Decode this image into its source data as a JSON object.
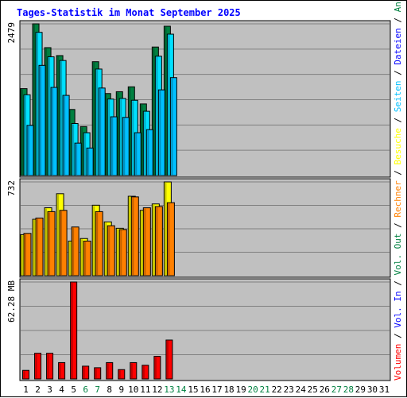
{
  "chart_data": {
    "type": "bar",
    "title": "Tages-Statistik im Monat September 2025",
    "categories": [
      "1",
      "2",
      "3",
      "4",
      "5",
      "6",
      "7",
      "8",
      "9",
      "10",
      "11",
      "12",
      "13",
      "14",
      "15",
      "16",
      "17",
      "18",
      "19",
      "20",
      "21",
      "22",
      "23",
      "24",
      "25",
      "26",
      "27",
      "28",
      "29",
      "30",
      "31"
    ],
    "weekend_days": [
      "6",
      "7",
      "13",
      "14",
      "20",
      "21",
      "27",
      "28"
    ],
    "grid": true,
    "panels": [
      {
        "name": "requests",
        "ymax_label": "2479",
        "ymax": 2479,
        "legend": [
          "Anfragen",
          "Dateien",
          "Seiten"
        ],
        "series": [
          {
            "name": "Anfragen",
            "color": "#008040",
            "values": [
              1420,
              2479,
              2090,
              1960,
              1080,
              800,
              1860,
              1340,
              1370,
              1450,
              1170,
              2100,
              2440,
              0,
              0,
              0,
              0,
              0,
              0,
              0,
              0,
              0,
              0,
              0,
              0,
              0,
              0,
              0,
              0,
              0,
              0
            ]
          },
          {
            "name": "Dateien",
            "color": "#00e0ff",
            "values": [
              1320,
              2340,
              1940,
              1880,
              850,
              700,
              1740,
              1250,
              1260,
              1230,
              1050,
              1950,
              2310,
              0,
              0,
              0,
              0,
              0,
              0,
              0,
              0,
              0,
              0,
              0,
              0,
              0,
              0,
              0,
              0,
              0,
              0
            ]
          },
          {
            "name": "Seiten",
            "color": "#00c0ff",
            "values": [
              820,
              1800,
              1440,
              1310,
              530,
              450,
              1430,
              960,
              950,
              700,
              750,
              1400,
              1600,
              0,
              0,
              0,
              0,
              0,
              0,
              0,
              0,
              0,
              0,
              0,
              0,
              0,
              0,
              0,
              0,
              0,
              0
            ]
          }
        ]
      },
      {
        "name": "visits",
        "ymax_label": "732",
        "ymax": 732,
        "legend": [
          "Besuche",
          "Rechner"
        ],
        "series": [
          {
            "name": "Besuche",
            "color": "#ffff00",
            "values": [
              320,
              440,
              530,
              640,
              270,
              290,
              550,
              420,
              370,
              620,
              510,
              560,
              732,
              0,
              0,
              0,
              0,
              0,
              0,
              0,
              0,
              0,
              0,
              0,
              0,
              0,
              0,
              0,
              0,
              0,
              0
            ]
          },
          {
            "name": "Rechner",
            "color": "#ff8000",
            "values": [
              330,
              450,
              500,
              510,
              380,
              270,
              500,
              390,
              360,
              615,
              530,
              540,
              570,
              0,
              0,
              0,
              0,
              0,
              0,
              0,
              0,
              0,
              0,
              0,
              0,
              0,
              0,
              0,
              0,
              0,
              0
            ]
          }
        ]
      },
      {
        "name": "volume",
        "ymax_label": "62.28 MB",
        "ymax": 62.28,
        "legend": [
          "Volumen",
          "Vol. In",
          "Vol. Out"
        ],
        "series": [
          {
            "name": "Volumen",
            "color": "#ff0000",
            "values": [
              5.5,
              16.5,
              16.5,
              10.5,
              62.28,
              8.2,
              7.2,
              10.5,
              6.0,
              10.5,
              8.8,
              14.5,
              25.0,
              0,
              0,
              0,
              0,
              0,
              0,
              0,
              0,
              0,
              0,
              0,
              0,
              0,
              0,
              0,
              0,
              0,
              0
            ]
          }
        ]
      }
    ],
    "legend_placement": "right-vertical",
    "right_legend": {
      "top": [
        {
          "text": "Anfragen",
          "color": "#008040"
        },
        {
          "text": "/",
          "color": "#000000"
        },
        {
          "text": "Dateien",
          "color": "#0000ff"
        },
        {
          "text": "/",
          "color": "#000000"
        },
        {
          "text": "Seiten",
          "color": "#00c0ff"
        },
        {
          "text": "/",
          "color": "#000000"
        },
        {
          "text": "Besuche",
          "color": "#ffff00"
        },
        {
          "text": "/",
          "color": "#000000"
        },
        {
          "text": "Rechner",
          "color": "#ff8000"
        },
        {
          "text": "/",
          "color": "#000000"
        },
        {
          "text": "Vol. Out",
          "color": "#008040"
        },
        {
          "text": "/",
          "color": "#000000"
        },
        {
          "text": "Vol. In",
          "color": "#0000ff"
        },
        {
          "text": "/",
          "color": "#000000"
        },
        {
          "text": "Volumen",
          "color": "#ff0000"
        }
      ]
    }
  },
  "colors": {
    "background": "#c0c0c0",
    "title": "#0000ff",
    "grid": "#808080",
    "weekday_label": "#000000",
    "weekend_label": "#008040"
  }
}
